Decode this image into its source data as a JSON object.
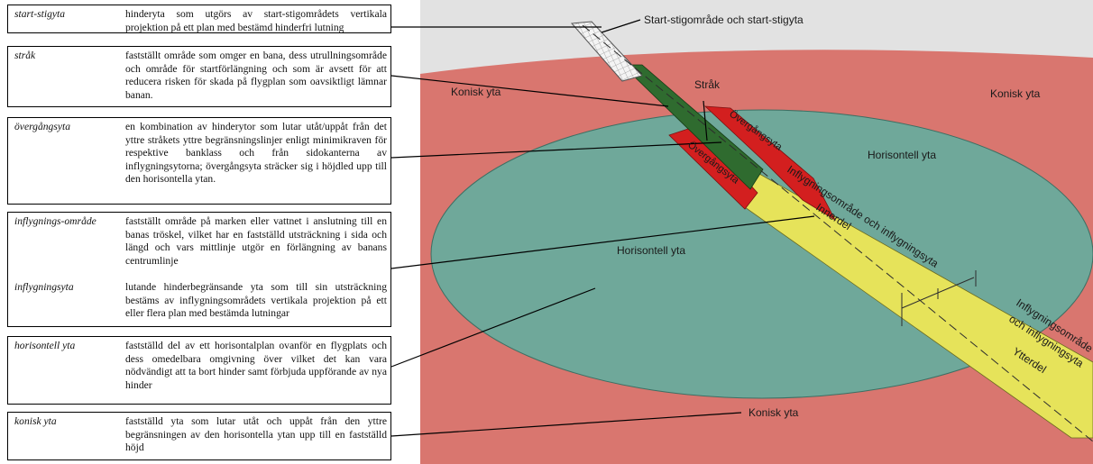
{
  "definitions": [
    {
      "term": "start-stigyta",
      "desc": "hinderyta som utgörs av start-stigområdets vertikala projektion på ett plan med bestämd hinderfri lutning"
    },
    {
      "term": "stråk",
      "desc": "fastställt område som omger en bana, dess utrullningsområde och område för startförlängning och som är avsett för att reducera risken för skada på flygplan som oavsiktligt lämnar banan."
    },
    {
      "term": "övergångsyta",
      "desc": "en kombination av hinderytor som lutar utåt/uppåt från det yttre stråkets yttre begränsningslinjer enligt minimikraven för respektive banklass och från sidokanterna av inflygningsytorna; övergångsyta sträcker sig i höjdled upp till den horisontella ytan."
    },
    {
      "term": "inflygnings-område",
      "desc": "fastställt område på marken eller vattnet i anslutning till en banas tröskel, vilket har en fastställd utsträckning i sida och längd och vars mittlinje utgör en förlängning av banans centrumlinje"
    },
    {
      "term": "inflygningsyta",
      "desc": "lutande hinderbegränsande yta som till sin utsträckning bestäms av inflygningsområdets vertikala projektion på ett eller flera plan med bestämda lutningar"
    },
    {
      "term": "horisontell yta",
      "desc": "fastställd del av ett horisontalplan ovanför en flygplats och dess omedelbara omgivning över vilket det kan vara nödvändigt att ta bort hinder samt förbjuda uppförande av nya hinder"
    },
    {
      "term": "konisk yta",
      "desc": "fastställd yta som lutar utåt och uppåt från den yttre begränsningen av den horisontella ytan upp till en fastställd höjd"
    }
  ],
  "diagram": {
    "label_start": "Start-stigområde och start-stigyta",
    "label_strak": "Stråk",
    "label_konisk_left": "Konisk yta",
    "label_konisk_right": "Konisk yta",
    "label_konisk_bottom": "Konisk yta",
    "label_horisontell_right": "Horisontell yta",
    "label_horisontell_left": "Horisontell yta",
    "label_overgang_1": "Övergångsyta",
    "label_overgang_2": "Övergångsyta",
    "label_inflyg_inner": "Inflygningsområde och inflygningsyta",
    "label_innerdel": "Innerdel",
    "label_inflyg_outer_1": "Inflygningsområde",
    "label_inflyg_outer_2": "och inflygningsyta",
    "label_ytterdel": "Ytterdel"
  },
  "colors": {
    "konisk": "#d9766f",
    "horisontell": "#6fa89a",
    "overgang": "#d31f1f",
    "inflyg": "#e6e35a",
    "strak": "#2f6b2f",
    "sky": "#e2e2e2"
  }
}
